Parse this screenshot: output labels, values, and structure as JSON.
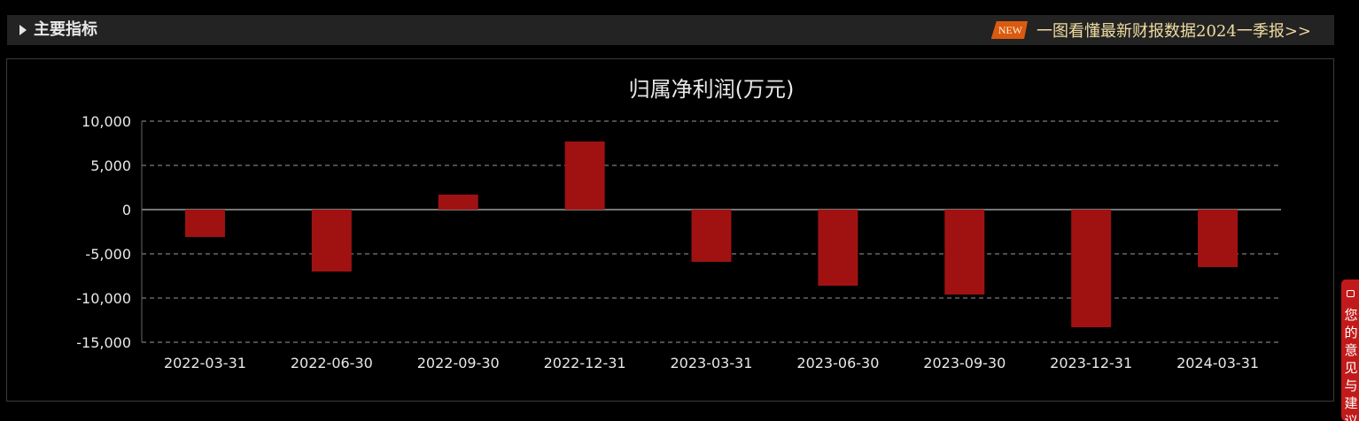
{
  "header": {
    "title": "主要指标",
    "badge": "NEW",
    "link_text": "一图看懂最新财报数据2024一季报>>"
  },
  "side_tab": {
    "text": "您的意见与建议"
  },
  "colors": {
    "background": "#000000",
    "bar": "#a01212",
    "grid": "#9a9a9a",
    "text": "#e8e8e8",
    "link": "#f0dca0",
    "badge": "#d95a10",
    "side_tab": "#c21a1a"
  },
  "chart_data": {
    "type": "bar",
    "title": "归属净利润(万元)",
    "xlabel": "",
    "ylabel": "",
    "categories": [
      "2022-03-31",
      "2022-06-30",
      "2022-09-30",
      "2022-12-31",
      "2023-03-31",
      "2023-06-30",
      "2023-09-30",
      "2023-12-31",
      "2024-03-31"
    ],
    "values": [
      -3100,
      -7000,
      1700,
      7700,
      -5900,
      -8600,
      -9600,
      -13300,
      -6500
    ],
    "ylim": [
      -15000,
      10000
    ],
    "yticks": [
      10000,
      5000,
      0,
      -5000,
      -10000,
      -15000
    ],
    "ytick_labels": [
      "10,000",
      "5,000",
      "0",
      "-5,000",
      "-10,000",
      "-15,000"
    ],
    "grid": true,
    "grid_style": "dashed",
    "legend": "none"
  }
}
